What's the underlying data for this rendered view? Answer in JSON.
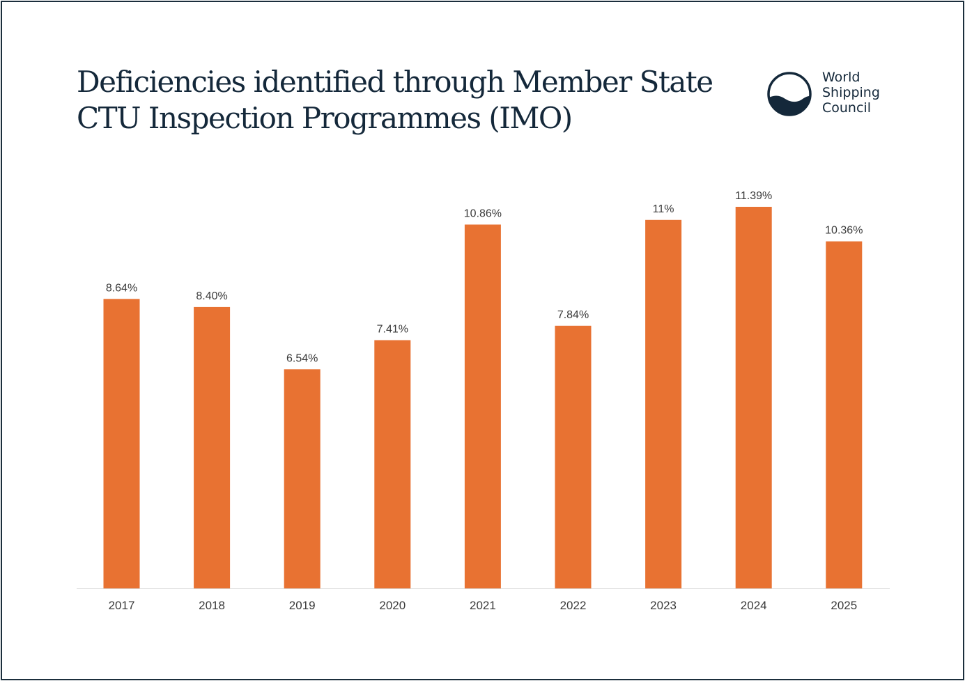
{
  "header": {
    "title_line1": "Deficiencies identified through Member State",
    "title_line2": "CTU Inspection Programmes (IMO)"
  },
  "logo": {
    "icon": "world-shipping-council-logo-icon",
    "line1": "World",
    "line2": "Shipping",
    "line3": "Council"
  },
  "colors": {
    "bar": "#e87232",
    "frame": "#1b2e3c",
    "title": "#14283a",
    "axis": "#d9d9d9"
  },
  "chart_data": {
    "type": "bar",
    "title": "Deficiencies identified through Member State CTU Inspection Programmes (IMO)",
    "xlabel": "",
    "ylabel": "",
    "categories": [
      "2017",
      "2018",
      "2019",
      "2020",
      "2021",
      "2022",
      "2023",
      "2024",
      "2025"
    ],
    "values": [
      8.64,
      8.4,
      6.54,
      7.41,
      10.86,
      7.84,
      11.0,
      11.39,
      10.36
    ],
    "data_labels": [
      "8.64%",
      "8.40%",
      "6.54%",
      "7.41%",
      "10.86%",
      "7.84%",
      "11%",
      "11.39%",
      "10.36%"
    ],
    "ylim": [
      0,
      11.39
    ],
    "grid": false,
    "legend": "none"
  }
}
